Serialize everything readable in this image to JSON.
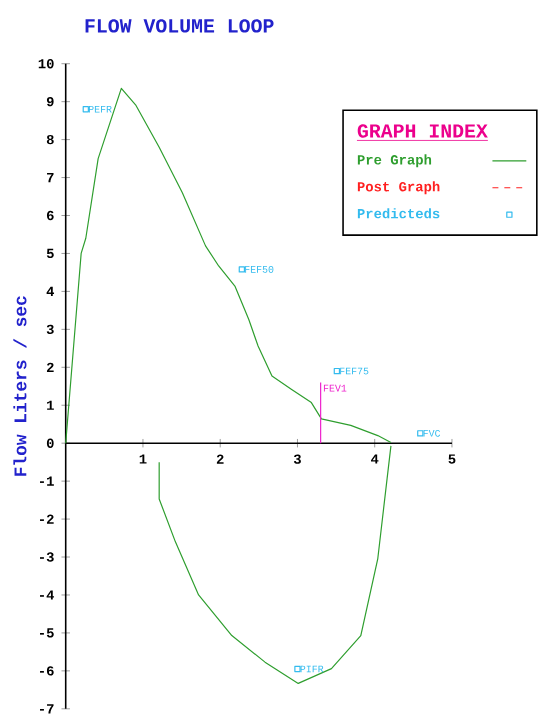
{
  "chart_data": {
    "type": "line",
    "title": "FLOW VOLUME LOOP",
    "ylabel": "Flow Liters / sec",
    "legend_title": "GRAPH INDEX",
    "legend": "top right",
    "xlim": [
      0,
      5
    ],
    "ylim": [
      -7,
      10
    ],
    "xticks": [
      1,
      2,
      3,
      4,
      5
    ],
    "yticks": [
      -7,
      -6,
      -5,
      -4,
      -3,
      -2,
      -1,
      0,
      1,
      2,
      3,
      4,
      5,
      6,
      7,
      8,
      9,
      10
    ],
    "series": [
      {
        "name": "Pre Graph",
        "color": "#2e9e2e",
        "line_style": "solid",
        "x": [
          0,
          0.2,
          0.26,
          0.42,
          0.72,
          0.91,
          1.21,
          1.51,
          1.81,
          1.98,
          2.19,
          2.37,
          2.49,
          2.67,
          2.92,
          3.18,
          3.31,
          3.69,
          4.04,
          4.21,
          null,
          1.21,
          1.21,
          1.42,
          1.72,
          2.15,
          2.58,
          3.01,
          3.44,
          3.82,
          4.04,
          4.16,
          4.21
        ],
        "values": [
          0,
          5.0,
          5.4,
          7.5,
          9.35,
          8.9,
          7.8,
          6.6,
          5.2,
          4.67,
          4.14,
          3.26,
          2.56,
          1.77,
          1.42,
          1.07,
          0.64,
          0.47,
          0.2,
          0.02,
          null,
          -0.5,
          -1.47,
          -2.6,
          -4.0,
          -5.07,
          -5.77,
          -6.33,
          -5.94,
          -5.07,
          -3.04,
          -0.94,
          -0.07
        ]
      },
      {
        "name": "Post Graph",
        "color": "#ff2020",
        "line_style": "dashed"
      },
      {
        "name": "Predicteds",
        "type": "scatter",
        "marker": "square",
        "color": "#33bbee",
        "x": [
          0.26,
          2.28,
          3.51,
          4.59,
          3.0
        ],
        "values": [
          8.8,
          4.58,
          1.9,
          0.26,
          -5.95
        ]
      },
      {
        "name": "FEV1",
        "color": "#ee22cc",
        "line_style": "solid",
        "x": [
          3.3,
          3.3
        ],
        "values": [
          0,
          1.6
        ]
      }
    ],
    "annotations": [
      {
        "text": "PEFR",
        "x": 0.26,
        "y": 8.8
      },
      {
        "text": "FEF50",
        "x": 2.28,
        "y": 4.58
      },
      {
        "text": "FEF75",
        "x": 3.51,
        "y": 1.9
      },
      {
        "text": "FVC",
        "x": 4.59,
        "y": 0.26
      },
      {
        "text": "PIFR",
        "x": 3.0,
        "y": -5.95
      }
    ]
  }
}
